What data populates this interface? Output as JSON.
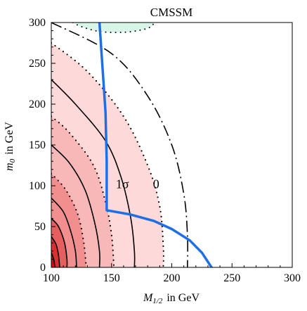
{
  "chart_data": {
    "type": "contour",
    "title": "CMSSM",
    "xlabel": {
      "symbol": "M",
      "sub": "1/2",
      "unit": "in GeV"
    },
    "ylabel": {
      "symbol": "m",
      "sub": "0",
      "unit": "in GeV"
    },
    "xlim": [
      100,
      300
    ],
    "ylim": [
      0,
      300
    ],
    "xticks": [
      100,
      150,
      200,
      250,
      300
    ],
    "yticks": [
      0,
      50,
      100,
      150,
      200,
      250,
      300
    ],
    "grid": false,
    "colors": {
      "band_lightest": "#fdd9d9",
      "band_light": "#f9b8b8",
      "band_mid": "#f18f8f",
      "band_strong": "#e55f5f",
      "band_deep": "#d83030",
      "band_core": "#d80e0e",
      "excluded_region": "#d7f6e8",
      "boundary_line": "#1e6ee6",
      "contour_line": "#000000"
    },
    "contour_labels": [
      {
        "text": "1σ",
        "x": 159,
        "y": 97
      },
      {
        "text": "0",
        "x": 187,
        "y": 97
      }
    ],
    "contours": [
      {
        "name": "0",
        "style": "long-dash",
        "points": [
          [
            100,
            300
          ],
          [
            150,
            262
          ],
          [
            180,
            210
          ],
          [
            200,
            150
          ],
          [
            210,
            90
          ],
          [
            213,
            40
          ],
          [
            213,
            0
          ]
        ]
      },
      {
        "name": "1σ",
        "style": "dotted",
        "points": [
          [
            100,
            275
          ],
          [
            130,
            240
          ],
          [
            160,
            185
          ],
          [
            180,
            125
          ],
          [
            190,
            75
          ],
          [
            193,
            25
          ],
          [
            193,
            0
          ]
        ]
      },
      {
        "name": "c3",
        "style": "solid",
        "points": [
          [
            100,
            230
          ],
          [
            120,
            200
          ],
          [
            145,
            155
          ],
          [
            158,
            110
          ],
          [
            166,
            60
          ],
          [
            169,
            20
          ],
          [
            169,
            0
          ]
        ]
      },
      {
        "name": "c4",
        "style": "dotted",
        "points": [
          [
            100,
            185
          ],
          [
            115,
            165
          ],
          [
            135,
            125
          ],
          [
            145,
            80
          ],
          [
            150,
            40
          ],
          [
            152,
            0
          ]
        ]
      },
      {
        "name": "c5",
        "style": "solid",
        "points": [
          [
            100,
            150
          ],
          [
            115,
            128
          ],
          [
            128,
            95
          ],
          [
            136,
            55
          ],
          [
            140,
            20
          ],
          [
            140,
            0
          ]
        ]
      },
      {
        "name": "c6",
        "style": "dotted",
        "points": [
          [
            100,
            115
          ],
          [
            112,
            95
          ],
          [
            122,
            65
          ],
          [
            127,
            30
          ],
          [
            129,
            0
          ]
        ]
      },
      {
        "name": "c7",
        "style": "solid",
        "points": [
          [
            100,
            85
          ],
          [
            110,
            68
          ],
          [
            116,
            45
          ],
          [
            120,
            20
          ],
          [
            121,
            0
          ]
        ]
      },
      {
        "name": "c8",
        "style": "solid",
        "points": [
          [
            100,
            60
          ],
          [
            106,
            50
          ],
          [
            111,
            30
          ],
          [
            113,
            10
          ],
          [
            113,
            0
          ]
        ]
      },
      {
        "name": "c9",
        "style": "solid",
        "points": [
          [
            100,
            38
          ],
          [
            104,
            28
          ],
          [
            106,
            15
          ],
          [
            107,
            0
          ]
        ]
      },
      {
        "name": "c10",
        "style": "solid",
        "points": [
          [
            100,
            18
          ],
          [
            102,
            10
          ],
          [
            103,
            0
          ]
        ]
      }
    ],
    "bands": [
      {
        "name": "band_lightest",
        "points": [
          [
            100,
            275
          ],
          [
            130,
            240
          ],
          [
            160,
            185
          ],
          [
            180,
            125
          ],
          [
            190,
            75
          ],
          [
            193,
            25
          ],
          [
            193,
            0
          ]
        ]
      },
      {
        "name": "band_light",
        "points": [
          [
            100,
            185
          ],
          [
            115,
            165
          ],
          [
            135,
            125
          ],
          [
            145,
            80
          ],
          [
            150,
            40
          ],
          [
            152,
            0
          ]
        ]
      },
      {
        "name": "band_mid",
        "points": [
          [
            100,
            115
          ],
          [
            112,
            95
          ],
          [
            122,
            65
          ],
          [
            127,
            30
          ],
          [
            129,
            0
          ]
        ]
      },
      {
        "name": "band_strong",
        "points": [
          [
            100,
            60
          ],
          [
            106,
            50
          ],
          [
            111,
            30
          ],
          [
            113,
            10
          ],
          [
            113,
            0
          ]
        ]
      },
      {
        "name": "band_deep",
        "points": [
          [
            100,
            38
          ],
          [
            104,
            28
          ],
          [
            106,
            15
          ],
          [
            107,
            0
          ]
        ]
      },
      {
        "name": "band_core",
        "points": [
          [
            100,
            18
          ],
          [
            102,
            10
          ],
          [
            103,
            0
          ]
        ]
      }
    ],
    "excluded_region": {
      "name": "green_region_top",
      "points": [
        [
          118,
          300
        ],
        [
          125,
          295
        ],
        [
          140,
          289
        ],
        [
          160,
          288
        ],
        [
          175,
          291
        ],
        [
          183,
          295
        ],
        [
          185,
          300
        ]
      ]
    },
    "boundary_line": {
      "name": "blue_boundary",
      "points": [
        [
          140,
          300
        ],
        [
          145,
          190
        ],
        [
          146,
          130
        ],
        [
          146,
          70
        ],
        [
          165,
          65
        ],
        [
          185,
          57
        ],
        [
          200,
          47
        ],
        [
          215,
          33
        ],
        [
          225,
          18
        ],
        [
          233,
          0
        ]
      ]
    }
  }
}
